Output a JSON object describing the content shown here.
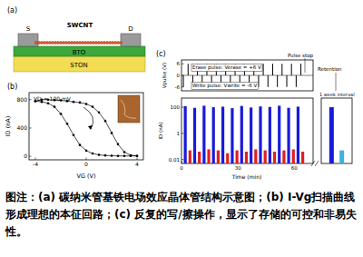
{
  "diagram": {
    "label": "(a)",
    "source": "S",
    "drain": "D",
    "channel": "SWCNT",
    "layers": [
      "BTO",
      "STON"
    ]
  },
  "chart_data": [
    {
      "type": "line",
      "title": "(b)",
      "x_label": "VG (V)",
      "y_label": "ID (nA)",
      "annotation": "VD = 100 mV",
      "xlim": [
        -4.5,
        4.5
      ],
      "ylim": [
        -50,
        900
      ],
      "xticks": [
        -4,
        0,
        4
      ],
      "yticks": [
        0,
        400,
        800
      ],
      "marker": "circle",
      "series": [
        {
          "color": "#000000",
          "x": [
            -4,
            -3.5,
            -3,
            -2.5,
            -2,
            -1.5,
            -1,
            -0.5,
            0,
            0.5,
            1,
            1.5,
            2,
            2.5,
            3,
            3.5,
            4
          ],
          "values": [
            780,
            800,
            800,
            795,
            790,
            780,
            770,
            760,
            740,
            700,
            620,
            500,
            330,
            170,
            60,
            15,
            5
          ]
        },
        {
          "color": "#000000",
          "x": [
            4,
            3.5,
            3,
            2.5,
            2,
            1.5,
            1,
            0.5,
            0,
            -0.5,
            -1,
            -1.5,
            -2,
            -2.5,
            -3,
            -3.5,
            -4
          ],
          "values": [
            5,
            5,
            5,
            5,
            8,
            12,
            20,
            40,
            80,
            160,
            300,
            460,
            600,
            700,
            750,
            770,
            780
          ]
        }
      ]
    },
    {
      "type": "bar",
      "title": "(c)",
      "y_label": "Vpulse (V)",
      "annotations": [
        "Erase pulse: Verase = +6 V",
        "Write pulse: Vwrite = -6 V",
        "Pulse stop",
        "Retention"
      ],
      "xlim": [
        0,
        70
      ],
      "ylim": [
        -8,
        8
      ],
      "yticks": [
        -6,
        0,
        6
      ],
      "tick_labels": "y",
      "series": [
        {
          "color": "#000000",
          "x": [
            1,
            3.5,
            6,
            8.5,
            11,
            13.5,
            16,
            18.5,
            21,
            23.5,
            26,
            28.5,
            31,
            33.5,
            36,
            38.5,
            41,
            43.5,
            46,
            48.5,
            51,
            53.5,
            56,
            58.5,
            61,
            63.5
          ],
          "values": [
            -6,
            6,
            -6,
            6,
            -6,
            6,
            -6,
            6,
            -6,
            6,
            -6,
            6,
            -6,
            6,
            -6,
            6,
            -6,
            6,
            -6,
            6,
            -6,
            6,
            -6,
            6,
            -6,
            6
          ]
        }
      ]
    },
    {
      "type": "bar",
      "log": "y",
      "x_label": "Time (min)",
      "y_label": "ID (nA)",
      "annotation": "1 week interval",
      "xlim": [
        0,
        70
      ],
      "ylim": [
        0.005,
        500
      ],
      "xticks": [
        0,
        30,
        60
      ],
      "yticks": [
        0.01,
        1,
        100
      ],
      "series": [
        {
          "color": "#1a1adb",
          "x": [
            2,
            7,
            12,
            17,
            22,
            27,
            32,
            37,
            42,
            47,
            52,
            57,
            62
          ],
          "values": [
            120,
            90,
            130,
            100,
            110,
            85,
            125,
            95,
            115,
            105,
            130,
            90,
            110
          ]
        },
        {
          "color": "#e02020",
          "x": [
            4.5,
            9.5,
            14.5,
            19.5,
            24.5,
            29.5,
            34.5,
            39.5,
            44.5,
            49.5,
            54.5,
            59.5,
            64.5
          ],
          "values": [
            0.05,
            0.04,
            0.06,
            0.05,
            0.03,
            0.05,
            0.04,
            0.06,
            0.05,
            0.04,
            0.05,
            0.06,
            0.04
          ]
        }
      ],
      "retention": {
        "values": [
          100,
          0.05
        ],
        "colors": [
          "#1a1adb",
          "#40b0e0"
        ]
      }
    }
  ],
  "caption": "图注：(a) 碳纳米管基铁电场效应晶体管结构示意图；(b) I-Vg扫描曲线形成理想的本征回路；(c) 反复的写/擦操作，显示了存储的可控和非易失性。"
}
